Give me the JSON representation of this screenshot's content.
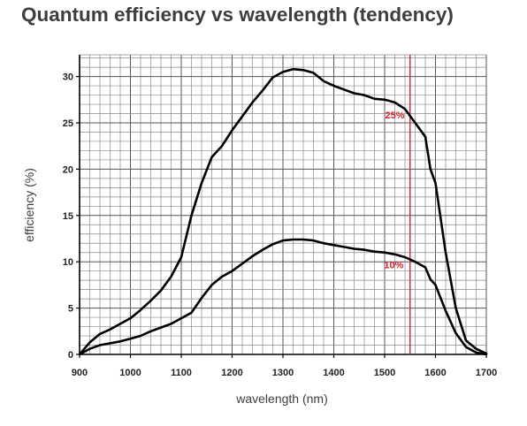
{
  "chart_data": {
    "type": "line",
    "title": "Quantum efficiency vs wavelength (tendency)",
    "xlabel": "wavelength (nm)",
    "ylabel": "efficiency (%)",
    "xlim": [
      900,
      1700
    ],
    "ylim": [
      0,
      30
    ],
    "x_ticks": [
      900,
      1000,
      1100,
      1200,
      1300,
      1400,
      1500,
      1600,
      1700
    ],
    "y_ticks": [
      0,
      5,
      10,
      15,
      20,
      25,
      30
    ],
    "grid": true,
    "reference_line": {
      "x": 1550,
      "color": "#d9232e"
    },
    "series": [
      {
        "name": "25%",
        "x": [
          900,
          920,
          940,
          960,
          980,
          1000,
          1020,
          1040,
          1060,
          1080,
          1100,
          1120,
          1140,
          1160,
          1180,
          1200,
          1220,
          1240,
          1260,
          1280,
          1300,
          1320,
          1340,
          1360,
          1380,
          1400,
          1420,
          1440,
          1460,
          1480,
          1500,
          1520,
          1540,
          1560,
          1580,
          1590,
          1600,
          1620,
          1640,
          1660,
          1680,
          1700
        ],
        "values": [
          0,
          1.3,
          2.2,
          2.7,
          3.3,
          3.9,
          4.8,
          5.8,
          6.9,
          8.4,
          10.5,
          15.0,
          18.5,
          21.3,
          22.5,
          24.2,
          25.7,
          27.2,
          28.5,
          29.9,
          30.5,
          30.8,
          30.7,
          30.4,
          29.5,
          29.0,
          28.6,
          28.2,
          28.0,
          27.6,
          27.5,
          27.2,
          26.5,
          25.0,
          23.5,
          20.0,
          18.5,
          11.0,
          5.0,
          1.5,
          0.6,
          0.1
        ]
      },
      {
        "name": "10%",
        "x": [
          900,
          920,
          940,
          960,
          980,
          1000,
          1020,
          1040,
          1060,
          1080,
          1100,
          1120,
          1140,
          1160,
          1180,
          1200,
          1220,
          1240,
          1260,
          1280,
          1300,
          1320,
          1340,
          1360,
          1380,
          1400,
          1420,
          1440,
          1460,
          1480,
          1500,
          1520,
          1540,
          1560,
          1580,
          1590,
          1600,
          1620,
          1640,
          1660,
          1680,
          1700
        ],
        "values": [
          0,
          0.6,
          1.0,
          1.2,
          1.4,
          1.7,
          2.0,
          2.5,
          2.9,
          3.3,
          3.9,
          4.5,
          6.1,
          7.5,
          8.4,
          9.0,
          9.8,
          10.6,
          11.3,
          11.9,
          12.3,
          12.4,
          12.4,
          12.3,
          12.0,
          11.8,
          11.6,
          11.4,
          11.3,
          11.1,
          11.0,
          10.8,
          10.5,
          10.0,
          9.4,
          8.1,
          7.5,
          4.7,
          2.3,
          0.8,
          0.2,
          0.0
        ]
      }
    ],
    "annotations": [
      {
        "text": "25%",
        "x": 1520,
        "y": 25.5,
        "color": "#d9232e"
      },
      {
        "text": "10%",
        "x": 1518,
        "y": 9.3,
        "color": "#d9232e"
      }
    ]
  }
}
